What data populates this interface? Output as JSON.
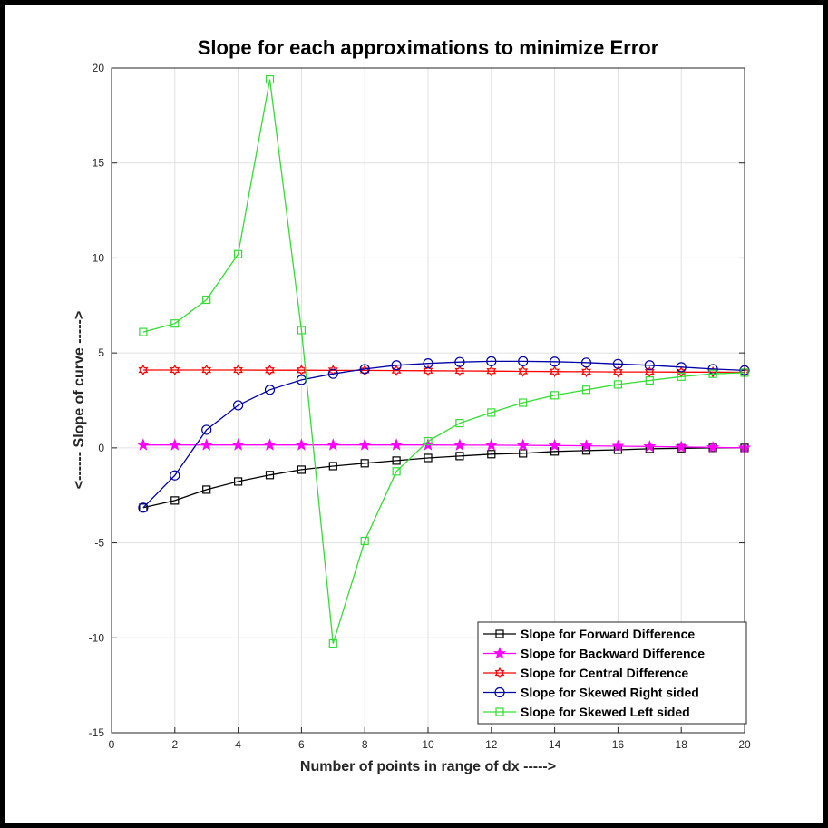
{
  "chart_data": {
    "type": "line",
    "title": "Slope for each approximations to minimize Error",
    "xlabel": "Number of points in range of dx   ----->",
    "ylabel": "<------     Slope of curve     ----->",
    "xlim": [
      0,
      20
    ],
    "ylim": [
      -15,
      20
    ],
    "xticks": [
      0,
      2,
      4,
      6,
      8,
      10,
      12,
      14,
      16,
      18,
      20
    ],
    "yticks": [
      -15,
      -10,
      -5,
      0,
      5,
      10,
      15,
      20
    ],
    "grid": true,
    "legend_position": "bottom-right",
    "x": [
      1,
      2,
      3,
      4,
      5,
      6,
      7,
      8,
      9,
      10,
      11,
      12,
      13,
      14,
      15,
      16,
      17,
      18,
      19,
      20
    ],
    "series": [
      {
        "name": "Slope for Forward Difference",
        "color": "#000000",
        "marker": "square",
        "values": [
          -3.15,
          -2.77,
          -2.2,
          -1.77,
          -1.43,
          -1.15,
          -0.96,
          -0.81,
          -0.67,
          -0.53,
          -0.43,
          -0.33,
          -0.29,
          -0.19,
          -0.14,
          -0.1,
          -0.05,
          -0.02,
          0,
          0
        ]
      },
      {
        "name": "Slope for Backward Difference",
        "color": "#ff00ff",
        "marker": "star",
        "values": [
          0.15,
          0.15,
          0.15,
          0.15,
          0.15,
          0.15,
          0.15,
          0.15,
          0.15,
          0.15,
          0.14,
          0.14,
          0.13,
          0.12,
          0.11,
          0.09,
          0.07,
          0.05,
          0.02,
          0
        ]
      },
      {
        "name": "Slope for Central Difference",
        "color": "#ff0000",
        "marker": "hexagram",
        "values": [
          4.1,
          4.1,
          4.1,
          4.1,
          4.09,
          4.09,
          4.08,
          4.08,
          4.07,
          4.06,
          4.05,
          4.04,
          4.03,
          4.02,
          4.01,
          4.0,
          4.0,
          3.99,
          3.99,
          3.98
        ]
      },
      {
        "name": "Slope for Skewed Right sided",
        "color": "#0000aa",
        "marker": "circle",
        "values": [
          -3.15,
          -1.45,
          0.95,
          2.24,
          3.06,
          3.58,
          3.9,
          4.15,
          4.35,
          4.45,
          4.52,
          4.56,
          4.56,
          4.54,
          4.49,
          4.42,
          4.35,
          4.25,
          4.15,
          4.08
        ]
      },
      {
        "name": "Slope for Skewed Left sided",
        "color": "#33dd33",
        "marker": "square",
        "values": [
          6.1,
          6.55,
          7.8,
          10.2,
          19.4,
          6.2,
          -10.3,
          -4.9,
          -1.24,
          0.35,
          1.3,
          1.86,
          2.38,
          2.77,
          3.06,
          3.34,
          3.55,
          3.75,
          3.9,
          3.96
        ]
      }
    ]
  }
}
